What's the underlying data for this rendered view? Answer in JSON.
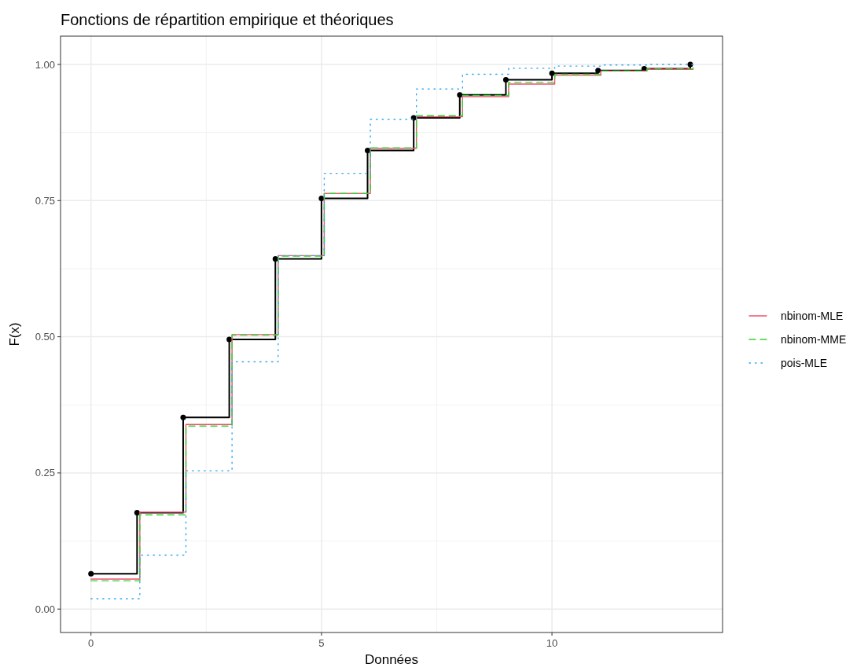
{
  "chart_data": {
    "type": "step",
    "title": "Fonctions de répartition empirique et théoriques",
    "xlabel": "Données",
    "ylabel": "F(x)",
    "x": [
      0,
      1,
      2,
      3,
      4,
      5,
      6,
      7,
      8,
      9,
      10,
      11,
      12,
      13
    ],
    "series": [
      {
        "color": "#000000",
        "marker": "circle",
        "values": [
          0.065,
          0.177,
          0.352,
          0.495,
          0.643,
          0.754,
          0.842,
          0.902,
          0.944,
          0.972,
          0.984,
          0.989,
          0.992,
          1.0
        ]
      },
      {
        "name": "nbinom-MLE",
        "color": "#f0506e",
        "line_style": "solid",
        "x": [
          0,
          1.06,
          2.06,
          3.06,
          4.06,
          5.06,
          6.06,
          7.06,
          8.06,
          9.06,
          10.06,
          11.06,
          12.06,
          13.06
        ],
        "values": [
          0.055,
          0.178,
          0.339,
          0.504,
          0.649,
          0.763,
          0.846,
          0.904,
          0.941,
          0.964,
          0.98,
          0.988,
          0.991,
          0.993
        ]
      },
      {
        "name": "nbinom-MME",
        "color": "#35d335",
        "line_style": "dashed",
        "x": [
          0,
          1.06,
          2.06,
          3.06,
          4.06,
          5.06,
          6.06,
          7.06,
          8.06,
          9.06,
          10.06,
          11.06,
          12.06,
          13.06
        ],
        "values": [
          0.052,
          0.173,
          0.336,
          0.503,
          0.648,
          0.763,
          0.847,
          0.906,
          0.943,
          0.967,
          0.982,
          0.988,
          0.992,
          0.994
        ]
      },
      {
        "name": "pois-MLE",
        "color": "#2fa8f0",
        "line_style": "dotted",
        "x": [
          0,
          1.06,
          2.06,
          3.06,
          4.06,
          5.06,
          6.06,
          7.06,
          8.06,
          9.06,
          10.06,
          11.06,
          12.06,
          13.06
        ],
        "values": [
          0.019,
          0.099,
          0.254,
          0.454,
          0.649,
          0.8,
          0.899,
          0.955,
          0.982,
          0.993,
          0.997,
          0.999,
          1.0,
          1.0
        ]
      }
    ],
    "xlim": [
      -0.66,
      13.7
    ],
    "ylim": [
      -0.043,
      1.052
    ],
    "xticks": [
      0,
      5,
      10
    ],
    "yticks": [
      {
        "value": 0,
        "label": "0.00"
      },
      {
        "value": 0.25,
        "label": "0.25"
      },
      {
        "value": 0.5,
        "label": "0.50"
      },
      {
        "value": 0.75,
        "label": "0.75"
      },
      {
        "value": 1,
        "label": "1.00"
      }
    ],
    "grid": true,
    "legend": "right"
  }
}
